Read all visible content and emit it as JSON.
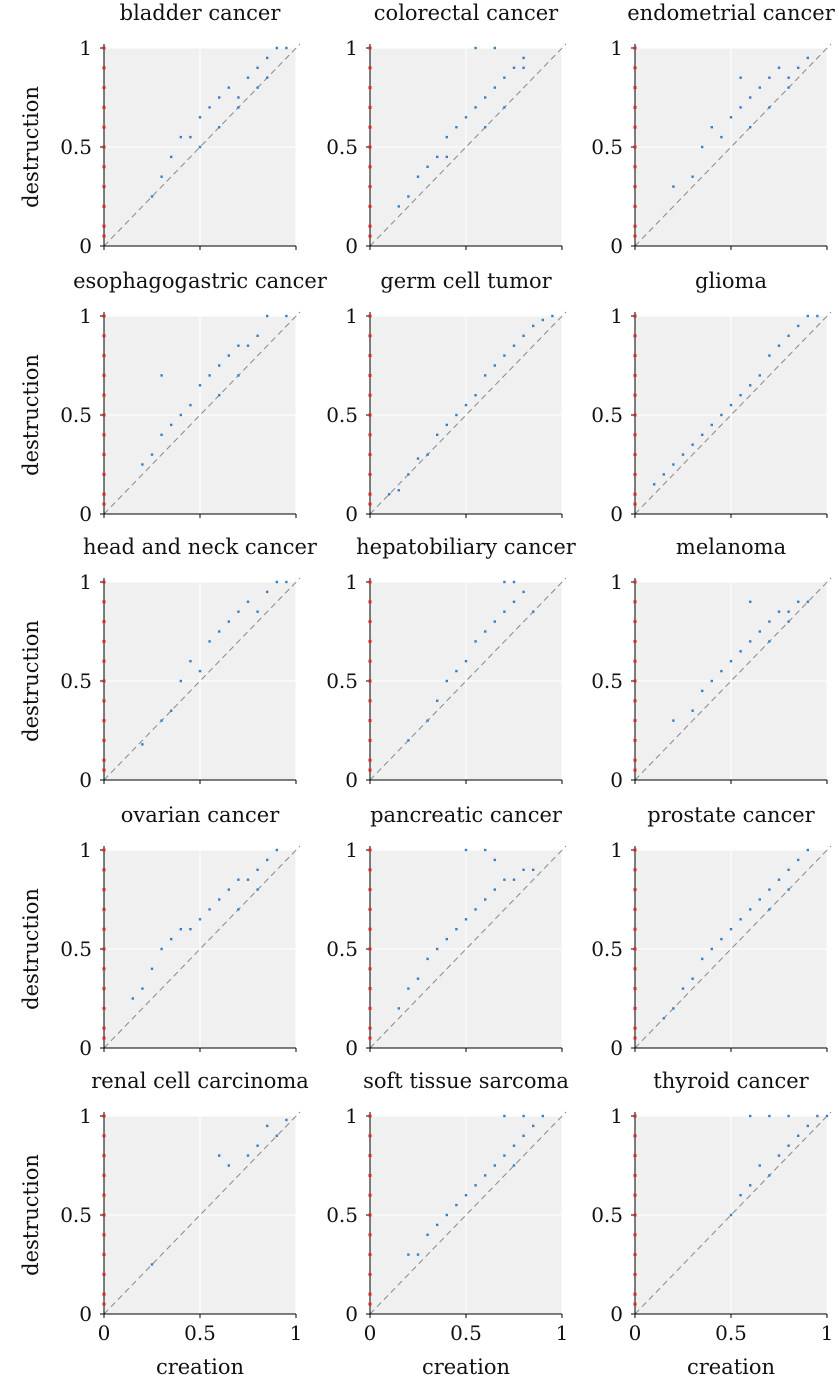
{
  "chart_data": {
    "type": "scatter",
    "layout": "small-multiples 5x3",
    "shared_axes": {
      "xlabel": "creation",
      "ylabel": "destruction",
      "xlim": [
        0,
        1
      ],
      "ylim": [
        0,
        1
      ],
      "ticks": [
        0,
        0.5,
        1
      ],
      "tick_labels": [
        "0",
        "0.5",
        "1"
      ],
      "grid": true,
      "background": "#f0f0f0",
      "diagonal": "dashed y = x"
    },
    "colors": {
      "points": "#3a7fc1",
      "zero_creation": "#d62728",
      "diagonal": "#888888",
      "grid": "#ffffff"
    },
    "panels": [
      {
        "title": "bladder cancer",
        "points": [
          [
            0.25,
            0.25
          ],
          [
            0.3,
            0.35
          ],
          [
            0.35,
            0.45
          ],
          [
            0.4,
            0.55
          ],
          [
            0.45,
            0.55
          ],
          [
            0.5,
            0.65
          ],
          [
            0.55,
            0.7
          ],
          [
            0.6,
            0.75
          ],
          [
            0.65,
            0.8
          ],
          [
            0.7,
            0.75
          ],
          [
            0.75,
            0.85
          ],
          [
            0.8,
            0.9
          ],
          [
            0.85,
            0.95
          ],
          [
            0.9,
            1
          ],
          [
            0.95,
            1
          ],
          [
            0.85,
            0.85
          ],
          [
            0.6,
            0.6
          ],
          [
            0.7,
            0.7
          ],
          [
            0.8,
            0.8
          ],
          [
            0.5,
            0.5
          ]
        ],
        "zero_y": [
          0.05,
          0.1,
          0.2,
          0.3,
          0.4,
          0.5,
          0.6,
          0.7,
          0.8,
          0.9,
          1
        ]
      },
      {
        "title": "colorectal cancer",
        "points": [
          [
            0.15,
            0.2
          ],
          [
            0.2,
            0.25
          ],
          [
            0.25,
            0.35
          ],
          [
            0.3,
            0.4
          ],
          [
            0.35,
            0.45
          ],
          [
            0.4,
            0.55
          ],
          [
            0.45,
            0.6
          ],
          [
            0.5,
            0.65
          ],
          [
            0.55,
            0.7
          ],
          [
            0.6,
            0.75
          ],
          [
            0.65,
            0.8
          ],
          [
            0.7,
            0.85
          ],
          [
            0.75,
            0.9
          ],
          [
            0.8,
            0.9
          ],
          [
            0.55,
            1
          ],
          [
            0.65,
            1
          ],
          [
            0.8,
            0.95
          ],
          [
            0.4,
            0.45
          ],
          [
            0.6,
            0.6
          ],
          [
            0.7,
            0.7
          ]
        ],
        "zero_y": [
          0.05,
          0.1,
          0.2,
          0.3,
          0.4,
          0.5,
          0.6,
          0.7,
          0.8,
          0.9,
          1
        ]
      },
      {
        "title": "endometrial cancer",
        "points": [
          [
            0.2,
            0.3
          ],
          [
            0.3,
            0.35
          ],
          [
            0.35,
            0.5
          ],
          [
            0.4,
            0.6
          ],
          [
            0.45,
            0.55
          ],
          [
            0.5,
            0.65
          ],
          [
            0.55,
            0.7
          ],
          [
            0.6,
            0.75
          ],
          [
            0.65,
            0.8
          ],
          [
            0.7,
            0.85
          ],
          [
            0.75,
            0.9
          ],
          [
            0.8,
            0.85
          ],
          [
            0.85,
            0.9
          ],
          [
            0.9,
            0.95
          ],
          [
            0.55,
            0.85
          ],
          [
            0.7,
            0.7
          ],
          [
            0.6,
            0.6
          ],
          [
            0.8,
            0.8
          ]
        ],
        "zero_y": [
          0.05,
          0.1,
          0.2,
          0.3,
          0.4,
          0.5,
          0.6,
          0.7,
          0.8,
          0.9,
          1
        ]
      },
      {
        "title": "esophagogastric cancer",
        "points": [
          [
            0.2,
            0.25
          ],
          [
            0.25,
            0.3
          ],
          [
            0.3,
            0.4
          ],
          [
            0.35,
            0.45
          ],
          [
            0.4,
            0.5
          ],
          [
            0.45,
            0.55
          ],
          [
            0.5,
            0.65
          ],
          [
            0.55,
            0.7
          ],
          [
            0.6,
            0.75
          ],
          [
            0.65,
            0.8
          ],
          [
            0.7,
            0.85
          ],
          [
            0.75,
            0.85
          ],
          [
            0.8,
            0.9
          ],
          [
            0.85,
            1
          ],
          [
            0.95,
            1
          ],
          [
            0.3,
            0.7
          ],
          [
            0.6,
            0.6
          ],
          [
            0.7,
            0.7
          ]
        ],
        "zero_y": [
          0.05,
          0.1,
          0.2,
          0.3,
          0.4,
          0.5,
          0.6,
          0.7,
          0.8,
          0.9,
          1
        ]
      },
      {
        "title": "germ cell tumor",
        "points": [
          [
            0.1,
            0.1
          ],
          [
            0.15,
            0.12
          ],
          [
            0.2,
            0.2
          ],
          [
            0.25,
            0.28
          ],
          [
            0.3,
            0.3
          ],
          [
            0.35,
            0.4
          ],
          [
            0.4,
            0.45
          ],
          [
            0.45,
            0.5
          ],
          [
            0.5,
            0.55
          ],
          [
            0.55,
            0.6
          ],
          [
            0.6,
            0.7
          ],
          [
            0.65,
            0.75
          ],
          [
            0.7,
            0.8
          ],
          [
            0.75,
            0.85
          ],
          [
            0.8,
            0.9
          ],
          [
            0.85,
            0.95
          ],
          [
            0.9,
            0.98
          ],
          [
            0.95,
            1
          ]
        ],
        "zero_y": [
          0.05,
          0.1,
          0.2,
          0.3,
          0.4,
          0.5,
          0.6,
          0.7,
          0.8,
          0.9,
          1
        ]
      },
      {
        "title": "glioma",
        "points": [
          [
            0.1,
            0.15
          ],
          [
            0.15,
            0.2
          ],
          [
            0.2,
            0.25
          ],
          [
            0.25,
            0.3
          ],
          [
            0.3,
            0.35
          ],
          [
            0.35,
            0.4
          ],
          [
            0.4,
            0.45
          ],
          [
            0.45,
            0.5
          ],
          [
            0.5,
            0.55
          ],
          [
            0.55,
            0.6
          ],
          [
            0.6,
            0.65
          ],
          [
            0.65,
            0.7
          ],
          [
            0.7,
            0.8
          ],
          [
            0.75,
            0.85
          ],
          [
            0.8,
            0.9
          ],
          [
            0.85,
            0.95
          ],
          [
            0.9,
            1
          ],
          [
            0.95,
            1
          ]
        ],
        "zero_y": [
          0.05,
          0.1,
          0.2,
          0.3,
          0.4,
          0.5,
          0.6,
          0.7,
          0.8,
          0.9,
          1
        ]
      },
      {
        "title": "head and neck cancer",
        "points": [
          [
            0.2,
            0.18
          ],
          [
            0.3,
            0.3
          ],
          [
            0.35,
            0.35
          ],
          [
            0.4,
            0.5
          ],
          [
            0.45,
            0.6
          ],
          [
            0.5,
            0.55
          ],
          [
            0.55,
            0.7
          ],
          [
            0.6,
            0.75
          ],
          [
            0.65,
            0.8
          ],
          [
            0.7,
            0.85
          ],
          [
            0.75,
            0.9
          ],
          [
            0.8,
            0.85
          ],
          [
            0.85,
            0.95
          ],
          [
            0.9,
            1
          ],
          [
            0.95,
            1
          ]
        ],
        "zero_y": [
          0.05,
          0.1,
          0.2,
          0.3,
          0.4,
          0.5,
          0.6,
          0.7,
          0.8,
          0.9,
          1
        ]
      },
      {
        "title": "hepatobiliary cancer",
        "points": [
          [
            0.2,
            0.2
          ],
          [
            0.3,
            0.3
          ],
          [
            0.35,
            0.4
          ],
          [
            0.4,
            0.5
          ],
          [
            0.45,
            0.55
          ],
          [
            0.5,
            0.6
          ],
          [
            0.55,
            0.7
          ],
          [
            0.6,
            0.75
          ],
          [
            0.65,
            0.8
          ],
          [
            0.7,
            0.85
          ],
          [
            0.75,
            0.9
          ],
          [
            0.8,
            0.95
          ],
          [
            0.7,
            1
          ],
          [
            0.75,
            1
          ],
          [
            0.85,
            0.85
          ]
        ],
        "zero_y": [
          0.05,
          0.1,
          0.2,
          0.3,
          0.4,
          0.5,
          0.6,
          0.7,
          0.8,
          0.9,
          1
        ]
      },
      {
        "title": "melanoma",
        "points": [
          [
            0.2,
            0.3
          ],
          [
            0.3,
            0.35
          ],
          [
            0.35,
            0.45
          ],
          [
            0.4,
            0.5
          ],
          [
            0.45,
            0.55
          ],
          [
            0.5,
            0.6
          ],
          [
            0.55,
            0.65
          ],
          [
            0.6,
            0.7
          ],
          [
            0.65,
            0.75
          ],
          [
            0.7,
            0.8
          ],
          [
            0.75,
            0.85
          ],
          [
            0.8,
            0.85
          ],
          [
            0.85,
            0.9
          ],
          [
            0.9,
            0.9
          ],
          [
            0.6,
            0.9
          ],
          [
            0.7,
            0.7
          ],
          [
            0.8,
            0.8
          ]
        ],
        "zero_y": [
          0.05,
          0.1,
          0.2,
          0.3,
          0.4,
          0.5,
          0.6,
          0.7,
          0.8,
          0.9,
          1
        ]
      },
      {
        "title": "ovarian cancer",
        "points": [
          [
            0.15,
            0.25
          ],
          [
            0.2,
            0.3
          ],
          [
            0.25,
            0.4
          ],
          [
            0.3,
            0.5
          ],
          [
            0.35,
            0.55
          ],
          [
            0.4,
            0.6
          ],
          [
            0.45,
            0.6
          ],
          [
            0.5,
            0.65
          ],
          [
            0.55,
            0.7
          ],
          [
            0.6,
            0.75
          ],
          [
            0.65,
            0.8
          ],
          [
            0.7,
            0.85
          ],
          [
            0.75,
            0.85
          ],
          [
            0.8,
            0.9
          ],
          [
            0.85,
            0.95
          ],
          [
            0.9,
            1
          ],
          [
            0.7,
            0.7
          ],
          [
            0.8,
            0.8
          ]
        ],
        "zero_y": [
          0.05,
          0.1,
          0.2,
          0.3,
          0.4,
          0.5,
          0.6,
          0.7,
          0.8,
          0.9,
          1
        ]
      },
      {
        "title": "pancreatic cancer",
        "points": [
          [
            0.15,
            0.2
          ],
          [
            0.2,
            0.3
          ],
          [
            0.25,
            0.35
          ],
          [
            0.3,
            0.45
          ],
          [
            0.35,
            0.5
          ],
          [
            0.4,
            0.55
          ],
          [
            0.45,
            0.6
          ],
          [
            0.5,
            0.65
          ],
          [
            0.55,
            0.7
          ],
          [
            0.6,
            0.75
          ],
          [
            0.65,
            0.8
          ],
          [
            0.7,
            0.85
          ],
          [
            0.75,
            0.85
          ],
          [
            0.8,
            0.9
          ],
          [
            0.5,
            1
          ],
          [
            0.6,
            1
          ],
          [
            0.65,
            0.95
          ],
          [
            0.85,
            0.9
          ]
        ],
        "zero_y": [
          0.05,
          0.1,
          0.2,
          0.3,
          0.4,
          0.5,
          0.6,
          0.7,
          0.8,
          0.9,
          1
        ]
      },
      {
        "title": "prostate cancer",
        "points": [
          [
            0.15,
            0.15
          ],
          [
            0.2,
            0.2
          ],
          [
            0.25,
            0.3
          ],
          [
            0.3,
            0.35
          ],
          [
            0.35,
            0.45
          ],
          [
            0.4,
            0.5
          ],
          [
            0.45,
            0.55
          ],
          [
            0.5,
            0.6
          ],
          [
            0.55,
            0.65
          ],
          [
            0.6,
            0.7
          ],
          [
            0.65,
            0.75
          ],
          [
            0.7,
            0.8
          ],
          [
            0.75,
            0.85
          ],
          [
            0.8,
            0.9
          ],
          [
            0.85,
            0.95
          ],
          [
            0.9,
            1
          ],
          [
            0.7,
            0.7
          ],
          [
            0.8,
            0.8
          ]
        ],
        "zero_y": [
          0.05,
          0.1,
          0.2,
          0.3,
          0.4,
          0.5,
          0.6,
          0.7,
          0.8,
          0.9,
          1
        ]
      },
      {
        "title": "renal cell carcinoma",
        "points": [
          [
            0.25,
            0.25
          ],
          [
            0.6,
            0.8
          ],
          [
            0.65,
            0.75
          ],
          [
            0.75,
            0.8
          ],
          [
            0.8,
            0.85
          ],
          [
            0.85,
            0.95
          ],
          [
            0.9,
            0.9
          ],
          [
            0.95,
            0.98
          ]
        ],
        "zero_y": [
          0.05,
          0.1,
          0.2,
          0.3,
          0.4,
          0.5,
          0.6,
          0.7,
          0.8,
          0.9,
          1
        ]
      },
      {
        "title": "soft tissue sarcoma",
        "points": [
          [
            0.2,
            0.3
          ],
          [
            0.25,
            0.3
          ],
          [
            0.3,
            0.4
          ],
          [
            0.35,
            0.45
          ],
          [
            0.4,
            0.5
          ],
          [
            0.45,
            0.55
          ],
          [
            0.5,
            0.6
          ],
          [
            0.55,
            0.65
          ],
          [
            0.6,
            0.7
          ],
          [
            0.65,
            0.75
          ],
          [
            0.7,
            0.8
          ],
          [
            0.75,
            0.85
          ],
          [
            0.8,
            0.9
          ],
          [
            0.85,
            0.95
          ],
          [
            0.7,
            1
          ],
          [
            0.8,
            1
          ],
          [
            0.9,
            1
          ],
          [
            0.75,
            0.75
          ]
        ],
        "zero_y": [
          0.05,
          0.1,
          0.2,
          0.3,
          0.4,
          0.5,
          0.6,
          0.7,
          0.8,
          0.9,
          1
        ]
      },
      {
        "title": "thyroid cancer",
        "points": [
          [
            0.5,
            0.5
          ],
          [
            0.55,
            0.6
          ],
          [
            0.6,
            0.65
          ],
          [
            0.65,
            0.75
          ],
          [
            0.7,
            0.7
          ],
          [
            0.75,
            0.8
          ],
          [
            0.8,
            0.85
          ],
          [
            0.85,
            0.9
          ],
          [
            0.9,
            0.95
          ],
          [
            0.95,
            1
          ],
          [
            0.6,
            1
          ],
          [
            0.7,
            1
          ],
          [
            0.8,
            1
          ],
          [
            1,
            1
          ]
        ],
        "zero_y": [
          0.05,
          0.1,
          0.2,
          0.3,
          0.4,
          0.5,
          0.6,
          0.7,
          0.8,
          0.9,
          1
        ]
      }
    ]
  }
}
